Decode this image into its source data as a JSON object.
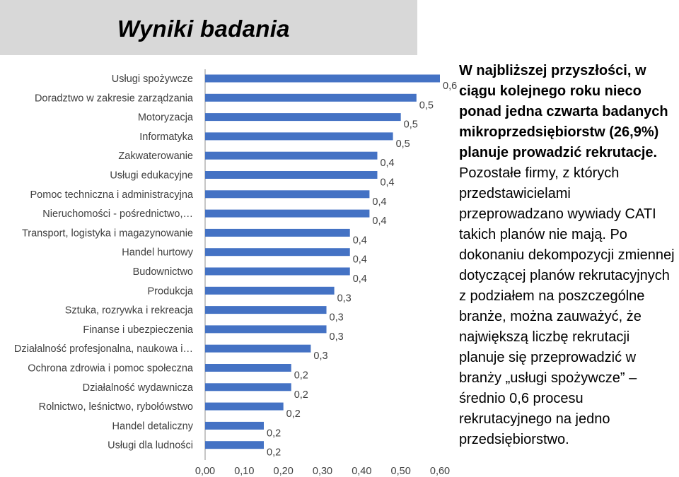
{
  "title": "Wyniki badania",
  "side_note": {
    "bold_text": "W najbliższej przyszłości, w ciągu kolejnego roku nieco ponad jedna czwarta badanych mikroprzedsiębiorstw (26,9%) planuje prowadzić rekrutacje.",
    "text_1": "Pozostałe firmy, z których przedstawicielami przeprowadzano wywiady CATI takich planów nie mają.",
    "text_2": "Po dokonaniu dekompozycji zmiennej dotyczącej planów rekrutacyjnych z podziałem na poszczególne branże, można zauważyć, że największą liczbę rekrutacji planuje się przeprowadzić w branży „usługi spożywcze” – średnio 0,6 procesu rekrutacyjnego na jedno przedsiębiorstwo."
  },
  "chart_data": {
    "type": "bar",
    "orientation": "horizontal",
    "title": "",
    "xlabel": "",
    "ylabel": "",
    "xlim": [
      0,
      0.6
    ],
    "x_ticks": [
      0,
      0.1,
      0.2,
      0.3,
      0.4,
      0.5,
      0.6
    ],
    "x_tick_labels": [
      "0,00",
      "0,10",
      "0,20",
      "0,30",
      "0,40",
      "0,50",
      "0,60"
    ],
    "grid": false,
    "legend": "none",
    "bar_color": "#4472c4",
    "categories": [
      "Usługi spożywcze",
      "Doradztwo w zakresie zarządzania",
      "Motoryzacja",
      "Informatyka",
      "Zakwaterowanie",
      "Usługi edukacyjne",
      "Pomoc techniczna i administracyjna",
      "Nieruchomości - pośrednictwo,…",
      "Transport, logistyka i magazynowanie",
      "Handel hurtowy",
      "Budownictwo",
      "Produkcja",
      "Sztuka, rozrywka i rekreacja",
      "Finanse i ubezpieczenia",
      "Działalność profesjonalna, naukowa i…",
      "Ochrona zdrowia i pomoc społeczna",
      "Działalność wydawnicza",
      "Rolnictwo, leśnictwo, rybołówstwo",
      "Handel detaliczny",
      "Usługi dla ludności"
    ],
    "values": [
      0.6,
      0.54,
      0.5,
      0.48,
      0.44,
      0.44,
      0.42,
      0.42,
      0.37,
      0.37,
      0.37,
      0.33,
      0.31,
      0.31,
      0.27,
      0.22,
      0.22,
      0.2,
      0.15,
      0.15
    ],
    "data_labels": [
      "0,6",
      "0,5",
      "0,5",
      "0,5",
      "0,4",
      "0,4",
      "0,4",
      "0,4",
      "0,4",
      "0,4",
      "0,4",
      "0,3",
      "0,3",
      "0,3",
      "0,3",
      "0,2",
      "0,2",
      "0,2",
      "0,2",
      "0,2"
    ]
  }
}
